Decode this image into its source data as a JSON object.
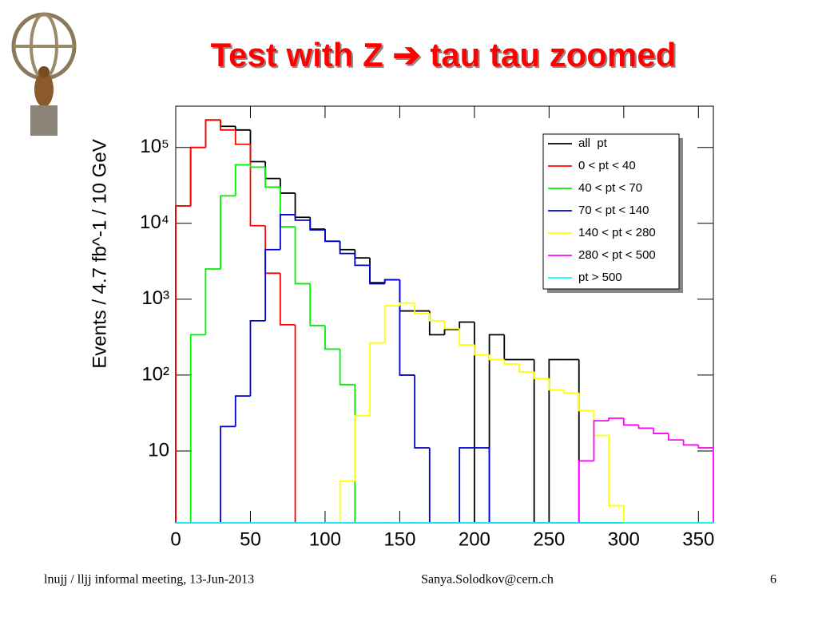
{
  "header": {
    "title": "Test with Z ➔ tau tau zoomed"
  },
  "chart_data": {
    "type": "histogram",
    "y_label": "Events / 4.7 fb^-1 / 10 GeV",
    "bins": [
      0,
      10,
      20,
      30,
      40,
      50,
      60,
      70,
      80,
      90,
      100,
      110,
      120,
      130,
      140,
      150,
      160,
      170,
      180,
      190,
      200,
      210,
      220,
      230,
      240,
      250,
      260,
      270,
      280,
      290,
      300,
      310,
      320,
      330,
      340,
      350,
      360
    ],
    "series": [
      {
        "name": "all  pt",
        "color": "#000000",
        "values": [
          17000,
          100000,
          230000,
          190000,
          170000,
          65000,
          39000,
          25000,
          12000,
          8400,
          5800,
          4500,
          3500,
          1650,
          1800,
          700,
          700,
          340,
          400,
          500,
          0,
          340,
          160,
          160,
          0,
          160,
          160,
          0,
          0,
          0,
          0,
          0,
          0,
          0,
          0,
          0
        ]
      },
      {
        "name": "0 < pt < 40",
        "color": "#ff0000",
        "values": [
          17000,
          100000,
          230000,
          170000,
          110000,
          9300,
          2200,
          460,
          0,
          0,
          0,
          0,
          0,
          0,
          0,
          0,
          0,
          0,
          0,
          0,
          0,
          0,
          0,
          0,
          0,
          0,
          0,
          0,
          0,
          0,
          0,
          0,
          0,
          0,
          0,
          0
        ]
      },
      {
        "name": "40 < pt < 70",
        "color": "#00ee00",
        "values": [
          0,
          340,
          2500,
          23000,
          59000,
          55000,
          30000,
          9000,
          1600,
          450,
          220,
          75,
          0,
          0,
          0,
          0,
          0,
          0,
          0,
          0,
          0,
          0,
          0,
          0,
          0,
          0,
          0,
          0,
          0,
          0,
          0,
          0,
          0,
          0,
          0,
          0
        ]
      },
      {
        "name": "70 < pt < 140",
        "color": "#0000cc",
        "values": [
          0,
          0,
          0,
          21,
          53,
          520,
          4500,
          13000,
          11000,
          8200,
          5800,
          4000,
          2800,
          1600,
          1800,
          100,
          11,
          0,
          0,
          11,
          11,
          0,
          0,
          0,
          0,
          0,
          0,
          0,
          0,
          0,
          0,
          0,
          0,
          0,
          0,
          0
        ]
      },
      {
        "name": "140 < pt < 280",
        "color": "#ffff00",
        "values": [
          0,
          0,
          0,
          0,
          0,
          0,
          0,
          0,
          0,
          0,
          0,
          4,
          29,
          265,
          820,
          890,
          650,
          520,
          410,
          250,
          185,
          160,
          140,
          110,
          90,
          64,
          58,
          34,
          16,
          1.9,
          0,
          0,
          0,
          0,
          0,
          0
        ]
      },
      {
        "name": "280 < pt < 500",
        "color": "#ff00ff",
        "values": [
          0,
          0,
          0,
          0,
          0,
          0,
          0,
          0,
          0,
          0,
          0,
          0,
          0,
          0,
          0,
          0,
          0,
          0,
          0,
          0,
          0,
          0,
          0,
          0,
          0,
          0,
          0,
          7.4,
          25,
          27,
          22,
          20,
          17,
          14,
          12,
          11
        ]
      },
      {
        "name": "pt > 500",
        "color": "#00ffff",
        "values": [
          0,
          0,
          0,
          0,
          0,
          0,
          0,
          0,
          0,
          0,
          0,
          0,
          0,
          0,
          0,
          0,
          0,
          0,
          0,
          0,
          0,
          0,
          0,
          0,
          0,
          0,
          0,
          0,
          0,
          0,
          0,
          0,
          0,
          0,
          0,
          0
        ]
      }
    ],
    "xlim": [
      0,
      360
    ],
    "xticks": [
      0,
      50,
      100,
      150,
      200,
      250,
      300,
      350
    ],
    "ylim": [
      1.13,
      350000
    ],
    "yticks": [
      10,
      {
        "value": 100,
        "label": "10²"
      },
      {
        "value": 1000,
        "label": "10³"
      },
      {
        "value": 10000,
        "label": "10⁴"
      },
      {
        "value": 100000,
        "label": "10⁵"
      }
    ],
    "log_y": true,
    "grid": false,
    "legend": "upper right"
  },
  "footer": {
    "left": "lnujj / lljj informal meeting, 13-Jun-2013",
    "center": "Sanya.Solodkov@cern.ch",
    "page": "6"
  }
}
